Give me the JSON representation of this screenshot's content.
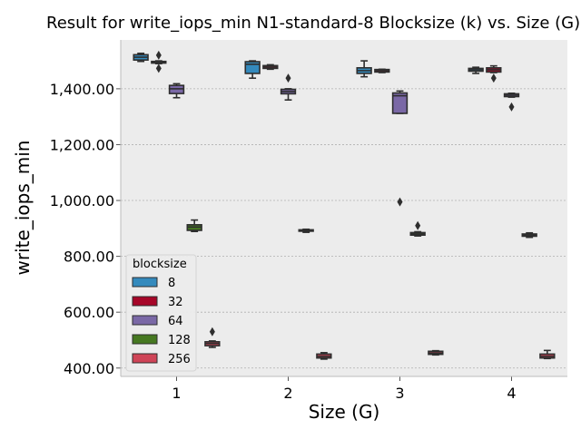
{
  "chart_data": {
    "type": "box",
    "title": "Result for write_iops_min N1-standard-8 Blocksize (k) vs. Size (G)",
    "xlabel": "Size (G)",
    "ylabel": "write_iops_min",
    "categories": [
      "1",
      "2",
      "3",
      "4"
    ],
    "ylim": [
      370,
      1575
    ],
    "yticks": [
      400,
      600,
      800,
      1000,
      1200,
      1400
    ],
    "ytick_labels": [
      "400.00",
      "600.00",
      "800.00",
      "1,000.00",
      "1,200.00",
      "1,400.00"
    ],
    "grid": true,
    "legend": {
      "title": "blocksize",
      "position": "lower-left"
    },
    "colors": {
      "background": "#ececec",
      "grid": "#b0b0b0",
      "edge": "#2e2e2e"
    },
    "series": [
      {
        "name": "8",
        "color": "#348abd",
        "boxes": [
          {
            "q1": 1503,
            "median": 1513,
            "q3": 1522,
            "whisker_low": 1498,
            "whisker_high": 1527,
            "outliers": []
          },
          {
            "q1": 1455,
            "median": 1488,
            "q3": 1497,
            "whisker_low": 1438,
            "whisker_high": 1500,
            "outliers": []
          },
          {
            "q1": 1455,
            "median": 1465,
            "q3": 1475,
            "whisker_low": 1443,
            "whisker_high": 1500,
            "outliers": []
          },
          {
            "q1": 1463,
            "median": 1468,
            "q3": 1473,
            "whisker_low": 1455,
            "whisker_high": 1477,
            "outliers": []
          }
        ]
      },
      {
        "name": "32",
        "color": "#a60628",
        "boxes": [
          {
            "q1": 1492,
            "median": 1495,
            "q3": 1498,
            "whisker_low": 1490,
            "whisker_high": 1500,
            "outliers": [
              1520,
              1473
            ]
          },
          {
            "q1": 1473,
            "median": 1478,
            "q3": 1483,
            "whisker_low": 1470,
            "whisker_high": 1486,
            "outliers": []
          },
          {
            "q1": 1460,
            "median": 1465,
            "q3": 1469,
            "whisker_low": 1458,
            "whisker_high": 1470,
            "outliers": []
          },
          {
            "q1": 1460,
            "median": 1468,
            "q3": 1475,
            "whisker_low": 1458,
            "whisker_high": 1482,
            "outliers": [
              1438
            ]
          }
        ]
      },
      {
        "name": "64",
        "color": "#7a68a6",
        "boxes": [
          {
            "q1": 1383,
            "median": 1400,
            "q3": 1412,
            "whisker_low": 1368,
            "whisker_high": 1418,
            "outliers": []
          },
          {
            "q1": 1382,
            "median": 1390,
            "q3": 1398,
            "whisker_low": 1360,
            "whisker_high": 1400,
            "outliers": [
              1438
            ]
          },
          {
            "q1": 1312,
            "median": 1375,
            "q3": 1385,
            "whisker_low": 1312,
            "whisker_high": 1392,
            "outliers": [
              995
            ]
          },
          {
            "q1": 1372,
            "median": 1377,
            "q3": 1382,
            "whisker_low": 1370,
            "whisker_high": 1384,
            "outliers": [
              1335
            ]
          }
        ]
      },
      {
        "name": "128",
        "color": "#467821",
        "boxes": [
          {
            "q1": 893,
            "median": 905,
            "q3": 913,
            "whisker_low": 889,
            "whisker_high": 930,
            "outliers": []
          },
          {
            "q1": 890,
            "median": 892,
            "q3": 895,
            "whisker_low": 886,
            "whisker_high": 897,
            "outliers": []
          },
          {
            "q1": 876,
            "median": 880,
            "q3": 885,
            "whisker_low": 873,
            "whisker_high": 888,
            "outliers": [
              910
            ]
          },
          {
            "q1": 872,
            "median": 876,
            "q3": 880,
            "whisker_low": 868,
            "whisker_high": 884,
            "outliers": []
          }
        ]
      },
      {
        "name": "256",
        "color": "#cf4457",
        "boxes": [
          {
            "q1": 480,
            "median": 488,
            "q3": 494,
            "whisker_low": 474,
            "whisker_high": 497,
            "outliers": [
              530
            ]
          },
          {
            "q1": 436,
            "median": 442,
            "q3": 450,
            "whisker_low": 432,
            "whisker_high": 455,
            "outliers": []
          },
          {
            "q1": 449,
            "median": 454,
            "q3": 460,
            "whisker_low": 447,
            "whisker_high": 462,
            "outliers": []
          },
          {
            "q1": 436,
            "median": 442,
            "q3": 450,
            "whisker_low": 434,
            "whisker_high": 463,
            "outliers": []
          }
        ]
      }
    ]
  }
}
